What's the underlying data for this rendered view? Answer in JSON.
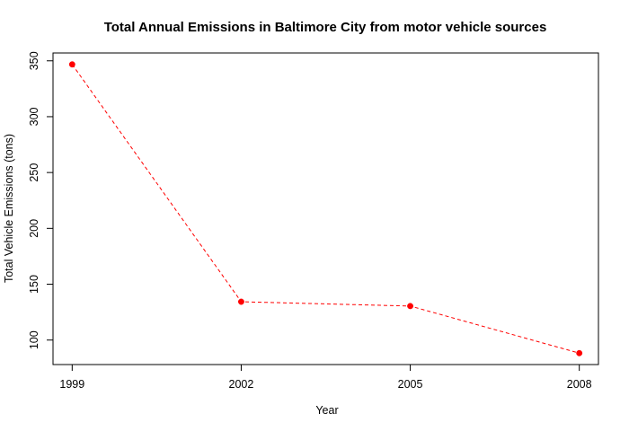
{
  "chart_data": {
    "type": "line",
    "title": "Total Annual Emissions in Baltimore City from motor vehicle sources",
    "xlabel": "Year",
    "ylabel": "Total Vehicle Emissions (tons)",
    "x": [
      1999,
      2002,
      2005,
      2008
    ],
    "series": [
      {
        "values": [
          346.82,
          134.31,
          130.43,
          88.28
        ],
        "color": "#ff0000",
        "line_style": "dashed",
        "marker": "filled-circle"
      }
    ],
    "xticks": [
      "1999",
      "2002",
      "2005",
      "2008"
    ],
    "yticks": [
      "100",
      "150",
      "200",
      "250",
      "300",
      "350"
    ],
    "xlim": [
      1998.66,
      2008.34
    ],
    "ylim": [
      78.06,
      357.04
    ],
    "grid": false,
    "legend": "none"
  }
}
